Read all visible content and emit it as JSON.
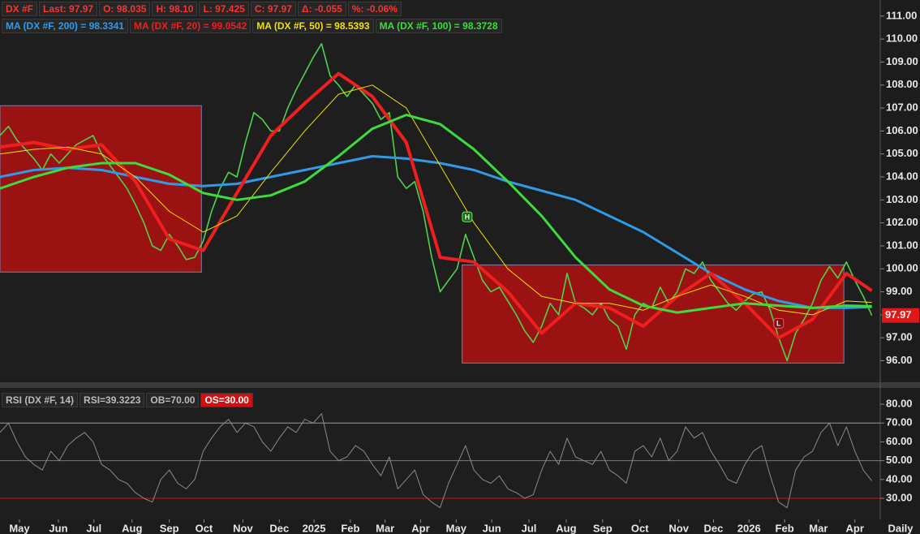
{
  "chart_data": [
    {
      "type": "line",
      "title": "DX #F",
      "color": "#4fd24f",
      "stats": [
        "Last: 97.97",
        "O: 98.035",
        "H: 98.10",
        "L: 97.425",
        "C: 97.97",
        "Δ: -0.055",
        "%: -0.06%"
      ],
      "xlim": [
        0,
        104
      ],
      "ylim": [
        95.1,
        111.7
      ],
      "yticks": [
        {
          "value": 96,
          "label": "96.00"
        },
        {
          "value": 97,
          "label": "97.00"
        },
        {
          "value": 98,
          "label": "98.00"
        },
        {
          "value": 99,
          "label": "99.00"
        },
        {
          "value": 100,
          "label": "100.00"
        },
        {
          "value": 101,
          "label": "101.00"
        },
        {
          "value": 102,
          "label": "102.00"
        },
        {
          "value": 103,
          "label": "103.00"
        },
        {
          "value": 104,
          "label": "104.00"
        },
        {
          "value": 105,
          "label": "105.00"
        },
        {
          "value": 106,
          "label": "106.00"
        },
        {
          "value": 107,
          "label": "107.00"
        },
        {
          "value": 108,
          "label": "108.00"
        },
        {
          "value": 109,
          "label": "109.00"
        },
        {
          "value": 110,
          "label": "110.00"
        },
        {
          "value": 111,
          "label": "111.00"
        }
      ],
      "x": [
        0,
        1,
        2,
        3,
        4,
        5,
        6,
        7,
        8,
        9,
        10,
        11,
        12,
        13,
        14,
        15,
        16,
        17,
        18,
        19,
        20,
        21,
        22,
        23,
        24,
        25,
        26,
        27,
        28,
        29,
        30,
        31,
        32,
        33,
        34,
        35,
        36,
        37,
        38,
        39,
        40,
        41,
        42,
        43,
        44,
        45,
        46,
        47,
        48,
        49,
        50,
        51,
        52,
        53,
        54,
        55,
        56,
        57,
        58,
        59,
        60,
        61,
        62,
        63,
        64,
        65,
        66,
        67,
        68,
        69,
        70,
        71,
        72,
        73,
        74,
        75,
        76,
        77,
        78,
        79,
        80,
        81,
        82,
        83,
        84,
        85,
        86,
        87,
        88,
        89,
        90,
        91,
        92,
        93,
        94,
        95,
        96,
        97,
        98,
        99,
        100,
        101,
        102,
        103
      ],
      "values": [
        105.8,
        106.2,
        105.6,
        105.2,
        104.8,
        104.3,
        105.0,
        104.6,
        105.0,
        105.4,
        105.6,
        105.8,
        105.0,
        104.5,
        104.0,
        103.5,
        102.8,
        102.0,
        101.0,
        100.8,
        101.5,
        101.0,
        100.4,
        100.5,
        101.2,
        102.5,
        103.5,
        104.2,
        104.0,
        105.5,
        106.8,
        106.5,
        106.0,
        106.0,
        107.0,
        107.8,
        108.5,
        109.2,
        109.8,
        108.4,
        108.0,
        107.5,
        108.0,
        107.6,
        107.2,
        106.5,
        106.8,
        104.0,
        103.5,
        103.8,
        102.5,
        100.5,
        99.0,
        99.5,
        100.0,
        101.5,
        100.5,
        99.5,
        99.0,
        99.2,
        98.6,
        98.0,
        97.3,
        96.8,
        97.5,
        98.5,
        98.0,
        99.8,
        98.5,
        98.3,
        98.0,
        98.5,
        97.8,
        97.5,
        96.5,
        98.0,
        98.5,
        98.3,
        99.2,
        98.5,
        99.0,
        100.0,
        99.8,
        100.3,
        99.5,
        99.0,
        98.5,
        98.2,
        98.6,
        98.9,
        99.0,
        98.2,
        97.0,
        96.0,
        97.2,
        97.8,
        98.5,
        99.5,
        100.1,
        99.6,
        100.3,
        99.5,
        98.8,
        97.97
      ],
      "series": [
        {
          "name": "MA (DX #F, 200) = 98.3341",
          "color": "#2f9be8",
          "width": 3,
          "x": [
            0,
            4,
            8,
            12,
            16,
            20,
            24,
            28,
            32,
            36,
            40,
            44,
            48,
            52,
            56,
            60,
            64,
            68,
            72,
            76,
            80,
            84,
            88,
            92,
            96,
            100,
            103
          ],
          "values": [
            104.0,
            104.3,
            104.4,
            104.3,
            104.0,
            103.7,
            103.6,
            103.7,
            104.0,
            104.3,
            104.6,
            104.9,
            104.8,
            104.6,
            104.3,
            103.8,
            103.4,
            103.0,
            102.3,
            101.6,
            100.7,
            99.8,
            99.1,
            98.6,
            98.3,
            98.3,
            98.34
          ]
        },
        {
          "name": "MA (DX #F, 20) = 99.0542",
          "color": "#f01e1e",
          "width": 4,
          "x": [
            0,
            4,
            8,
            12,
            16,
            20,
            24,
            28,
            32,
            36,
            40,
            44,
            48,
            52,
            56,
            60,
            64,
            68,
            72,
            76,
            80,
            84,
            88,
            92,
            96,
            100,
            103
          ],
          "values": [
            105.3,
            105.5,
            105.2,
            105.4,
            103.8,
            101.3,
            100.8,
            103.3,
            105.8,
            107.2,
            108.5,
            107.5,
            105.5,
            100.5,
            100.3,
            99.0,
            97.2,
            98.5,
            98.3,
            97.5,
            98.8,
            99.8,
            98.5,
            97.0,
            97.8,
            99.8,
            99.05
          ]
        },
        {
          "name": "MA (DX #F, 50) = 98.5393",
          "color": "#f0e000",
          "width": 1,
          "x": [
            0,
            4,
            8,
            12,
            16,
            20,
            24,
            28,
            32,
            36,
            40,
            44,
            48,
            52,
            56,
            60,
            64,
            68,
            72,
            76,
            80,
            84,
            88,
            92,
            96,
            100,
            103
          ],
          "values": [
            105.0,
            105.2,
            105.3,
            105.0,
            104.0,
            102.5,
            101.6,
            102.3,
            104.2,
            106.0,
            107.6,
            108.0,
            107.0,
            104.5,
            102.0,
            100.0,
            98.8,
            98.5,
            98.5,
            98.2,
            98.8,
            99.3,
            98.8,
            98.2,
            98.0,
            98.6,
            98.54
          ]
        },
        {
          "name": "MA (DX #F, 100) = 98.3728",
          "color": "#3cdc3c",
          "width": 3,
          "x": [
            0,
            4,
            8,
            12,
            16,
            20,
            24,
            28,
            32,
            36,
            40,
            44,
            48,
            52,
            56,
            60,
            64,
            68,
            72,
            76,
            80,
            84,
            88,
            92,
            96,
            100,
            103
          ],
          "values": [
            103.5,
            104.0,
            104.4,
            104.6,
            104.6,
            104.1,
            103.3,
            103.0,
            103.2,
            103.8,
            104.9,
            106.1,
            106.7,
            106.3,
            105.2,
            103.8,
            102.3,
            100.5,
            99.1,
            98.4,
            98.1,
            98.3,
            98.5,
            98.4,
            98.3,
            98.4,
            98.37
          ]
        }
      ],
      "rectangles": [
        {
          "x": [
            0,
            23.8
          ],
          "y": [
            99.86,
            107.1
          ]
        },
        {
          "x": [
            54.6,
            99.7
          ],
          "y": [
            95.9,
            100.17
          ]
        }
      ],
      "markers": [
        {
          "label": "H",
          "x": 55.2,
          "y": 102.26
        },
        {
          "label": "L",
          "x": 92,
          "y": 97.63
        }
      ]
    },
    {
      "type": "line",
      "title": "RSI (DX #F, 14)",
      "color": "#8a8a8a",
      "stats": [
        "RSI=39.3223",
        "OB=70.00",
        "OS=30.00"
      ],
      "xlim": [
        0,
        104
      ],
      "ylim": [
        18.8,
        87.8
      ],
      "yticks": [
        {
          "value": 30,
          "label": "30.00"
        },
        {
          "value": 40,
          "label": "40.00"
        },
        {
          "value": 50,
          "label": "50.00"
        },
        {
          "value": 60,
          "label": "60.00"
        },
        {
          "value": 70,
          "label": "70.00"
        },
        {
          "value": 80,
          "label": "80.00"
        }
      ],
      "levels": [
        {
          "value": 70,
          "color": "#9a9a9a"
        },
        {
          "value": 50,
          "color": "#777777"
        },
        {
          "value": 30,
          "color": "#d01010"
        }
      ],
      "xticks": [
        {
          "value": 2.3,
          "label": "May"
        },
        {
          "value": 6.9,
          "label": "Jun"
        },
        {
          "value": 11.1,
          "label": "Jul"
        },
        {
          "value": 15.6,
          "label": "Aug"
        },
        {
          "value": 20.0,
          "label": "Sep"
        },
        {
          "value": 24.1,
          "label": "Oct"
        },
        {
          "value": 28.7,
          "label": "Nov"
        },
        {
          "value": 33.0,
          "label": "Dec"
        },
        {
          "value": 37.1,
          "label": "2025"
        },
        {
          "value": 41.4,
          "label": "Feb"
        },
        {
          "value": 45.5,
          "label": "Mar"
        },
        {
          "value": 49.7,
          "label": "Apr"
        },
        {
          "value": 53.9,
          "label": "May"
        },
        {
          "value": 58.1,
          "label": "Jun"
        },
        {
          "value": 62.5,
          "label": "Jul"
        },
        {
          "value": 66.9,
          "label": "Aug"
        },
        {
          "value": 71.2,
          "label": "Sep"
        },
        {
          "value": 75.6,
          "label": "Oct"
        },
        {
          "value": 80.2,
          "label": "Nov"
        },
        {
          "value": 84.3,
          "label": "Dec"
        },
        {
          "value": 88.5,
          "label": "2026"
        },
        {
          "value": 92.7,
          "label": "Feb"
        },
        {
          "value": 96.7,
          "label": "Mar"
        },
        {
          "value": 101.0,
          "label": "Apr"
        }
      ],
      "period": "Daily",
      "x": [
        0,
        1,
        2,
        3,
        4,
        5,
        6,
        7,
        8,
        9,
        10,
        11,
        12,
        13,
        14,
        15,
        16,
        17,
        18,
        19,
        20,
        21,
        22,
        23,
        24,
        25,
        26,
        27,
        28,
        29,
        30,
        31,
        32,
        33,
        34,
        35,
        36,
        37,
        38,
        39,
        40,
        41,
        42,
        43,
        44,
        45,
        46,
        47,
        48,
        49,
        50,
        51,
        52,
        53,
        54,
        55,
        56,
        57,
        58,
        59,
        60,
        61,
        62,
        63,
        64,
        65,
        66,
        67,
        68,
        69,
        70,
        71,
        72,
        73,
        74,
        75,
        76,
        77,
        78,
        79,
        80,
        81,
        82,
        83,
        84,
        85,
        86,
        87,
        88,
        89,
        90,
        91,
        92,
        93,
        94,
        95,
        96,
        97,
        98,
        99,
        100,
        101,
        102,
        103
      ],
      "values": [
        65,
        70,
        60,
        52,
        48,
        45,
        55,
        50,
        58,
        62,
        65,
        60,
        48,
        45,
        40,
        38,
        33,
        30,
        28,
        40,
        45,
        38,
        35,
        40,
        55,
        62,
        68,
        72,
        65,
        70,
        68,
        60,
        55,
        62,
        68,
        65,
        72,
        70,
        75,
        55,
        50,
        52,
        58,
        55,
        48,
        42,
        52,
        35,
        40,
        45,
        32,
        28,
        25,
        38,
        48,
        58,
        45,
        40,
        38,
        42,
        35,
        33,
        30,
        32,
        45,
        55,
        48,
        62,
        52,
        50,
        48,
        55,
        45,
        42,
        38,
        55,
        58,
        52,
        62,
        50,
        55,
        68,
        62,
        65,
        55,
        48,
        40,
        38,
        48,
        55,
        58,
        42,
        28,
        25,
        45,
        52,
        55,
        65,
        70,
        58,
        68,
        55,
        45,
        39.3223
      ]
    }
  ]
}
